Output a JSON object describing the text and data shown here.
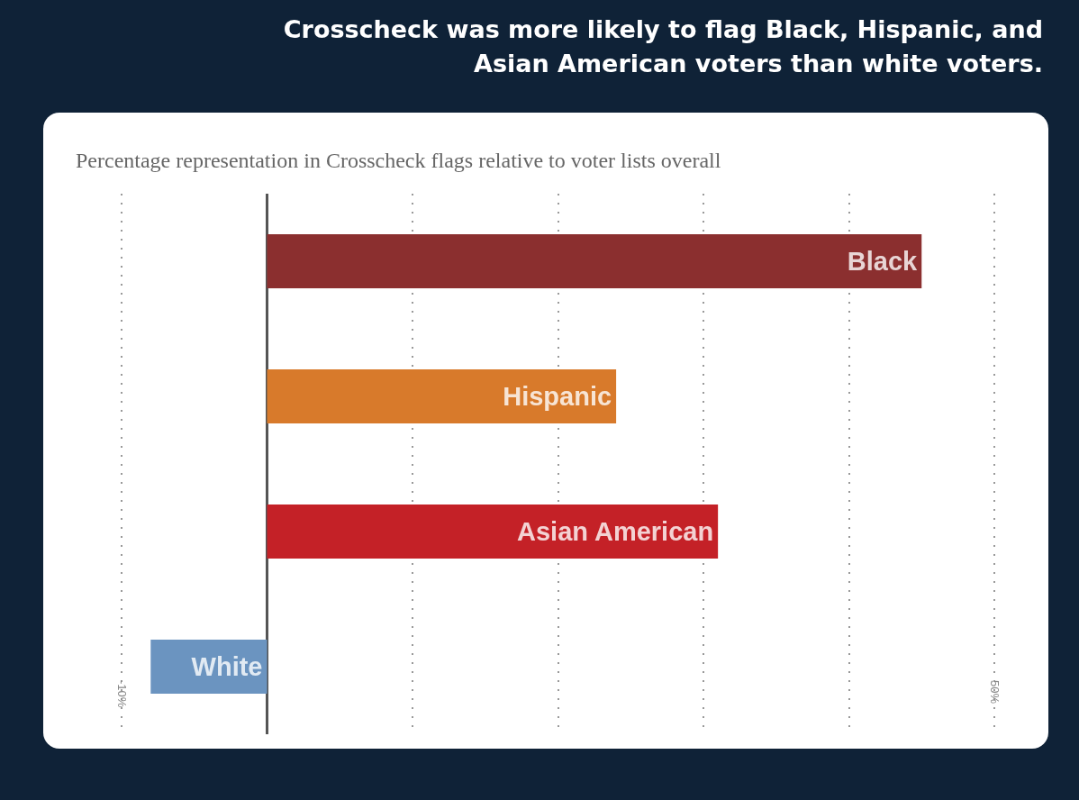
{
  "chart_data": {
    "type": "bar",
    "orientation": "horizontal",
    "title": "Crosscheck was more likely to flag Black, Hispanic, and Asian American voters than white voters.",
    "subtitle": "Percentage representation in Crosscheck flags relative to voter lists overall",
    "categories": [
      "Black",
      "Hispanic",
      "Asian American",
      "White"
    ],
    "values": [
      45,
      24,
      31,
      -8
    ],
    "colors": [
      "#8b2f2f",
      "#d87a2b",
      "#c42127",
      "#6b94c0"
    ],
    "xlim": [
      -10,
      50
    ],
    "xticks": [
      {
        "value": -10,
        "label": "-10%"
      },
      {
        "value": 0,
        "label": null
      },
      {
        "value": 10,
        "label": null
      },
      {
        "value": 20,
        "label": null
      },
      {
        "value": 30,
        "label": null
      },
      {
        "value": 40,
        "label": null
      },
      {
        "value": 50,
        "label": "50%"
      }
    ],
    "grid": "x",
    "tick_labels": "x"
  }
}
